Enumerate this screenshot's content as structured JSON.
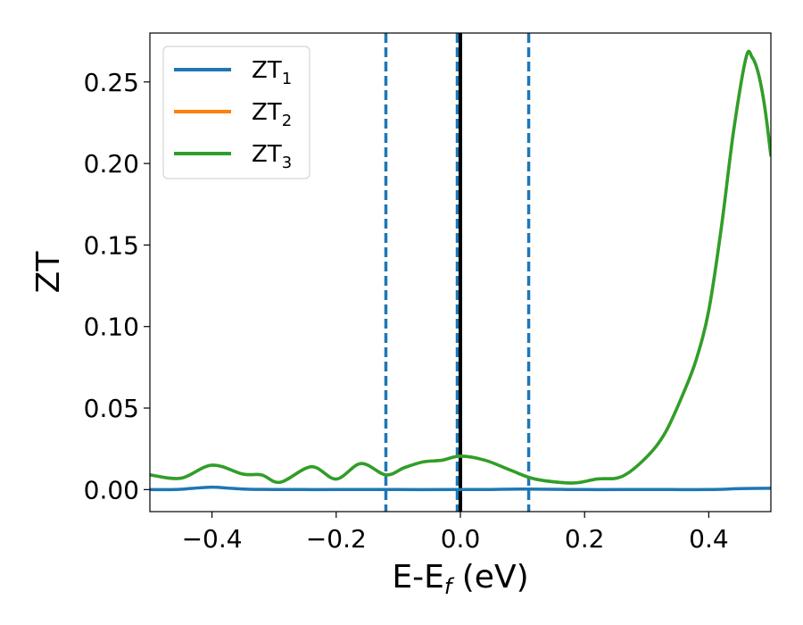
{
  "chart_data": {
    "type": "line",
    "xlabel": {
      "main": "E-E",
      "sub": "f",
      "unit": " (eV)"
    },
    "ylabel": "ZT",
    "xlim": [
      -0.5,
      0.5
    ],
    "ylim": [
      -0.0135,
      0.28
    ],
    "xticks": [
      -0.4,
      -0.2,
      0.0,
      0.2,
      0.4
    ],
    "xtick_labels": [
      "−0.4",
      "−0.2",
      "0.0",
      "0.2",
      "0.4"
    ],
    "yticks": [
      0.0,
      0.05,
      0.1,
      0.15,
      0.2,
      0.25
    ],
    "ytick_labels": [
      "0.00",
      "0.05",
      "0.10",
      "0.15",
      "0.20",
      "0.25"
    ],
    "grid": false,
    "legend_position": "top-left",
    "vlines": [
      {
        "x": -0.12,
        "style": "dashed",
        "color": "#1f77b4"
      },
      {
        "x": -0.005,
        "style": "dashed",
        "color": "#1f77b4"
      },
      {
        "x": 0.11,
        "style": "dashed",
        "color": "#1f77b4"
      },
      {
        "x": 0.0,
        "style": "solid",
        "color": "#000000"
      }
    ],
    "series": [
      {
        "name": "ZT",
        "sub": "1",
        "color": "#1f77b4",
        "x": [
          -0.5,
          -0.46,
          -0.43,
          -0.4,
          -0.37,
          -0.34,
          -0.3,
          -0.25,
          -0.2,
          -0.1,
          0.0,
          0.05,
          0.1,
          0.2,
          0.3,
          0.4,
          0.45,
          0.5
        ],
        "y": [
          0.0,
          0.0,
          0.0008,
          0.0015,
          0.0008,
          0.0002,
          0.0001,
          0.0,
          0.0,
          0.0,
          0.0,
          0.0001,
          0.0003,
          0.0,
          0.0001,
          0.0,
          0.0006,
          0.0008
        ]
      },
      {
        "name": "ZT",
        "sub": "2",
        "color": "#ff7f0e",
        "x": [
          -0.5,
          -0.45,
          -0.4,
          -0.35,
          -0.32,
          -0.29,
          -0.24,
          -0.2,
          -0.16,
          -0.12,
          -0.09,
          -0.06,
          -0.03,
          0.0,
          0.04,
          0.08,
          0.12,
          0.18,
          0.22,
          0.26,
          0.3,
          0.33,
          0.36,
          0.38,
          0.4,
          0.42,
          0.44,
          0.46,
          0.47,
          0.48,
          0.49,
          0.5
        ],
        "y": [
          0.009,
          0.007,
          0.015,
          0.0095,
          0.009,
          0.0045,
          0.014,
          0.0065,
          0.016,
          0.009,
          0.0135,
          0.017,
          0.018,
          0.0205,
          0.018,
          0.012,
          0.0065,
          0.004,
          0.0065,
          0.008,
          0.02,
          0.035,
          0.06,
          0.08,
          0.11,
          0.16,
          0.22,
          0.265,
          0.265,
          0.255,
          0.235,
          0.205
        ]
      },
      {
        "name": "ZT",
        "sub": "3",
        "color": "#2ca02c",
        "x": [
          -0.5,
          -0.45,
          -0.4,
          -0.35,
          -0.32,
          -0.29,
          -0.24,
          -0.2,
          -0.16,
          -0.12,
          -0.09,
          -0.06,
          -0.03,
          0.0,
          0.04,
          0.08,
          0.12,
          0.18,
          0.22,
          0.26,
          0.3,
          0.33,
          0.36,
          0.38,
          0.4,
          0.42,
          0.44,
          0.46,
          0.47,
          0.48,
          0.49,
          0.5
        ],
        "y": [
          0.009,
          0.007,
          0.015,
          0.0095,
          0.009,
          0.0045,
          0.014,
          0.0065,
          0.016,
          0.009,
          0.0135,
          0.017,
          0.018,
          0.0205,
          0.018,
          0.012,
          0.0065,
          0.004,
          0.0065,
          0.008,
          0.02,
          0.035,
          0.06,
          0.08,
          0.11,
          0.16,
          0.22,
          0.265,
          0.265,
          0.255,
          0.235,
          0.205
        ]
      }
    ]
  }
}
